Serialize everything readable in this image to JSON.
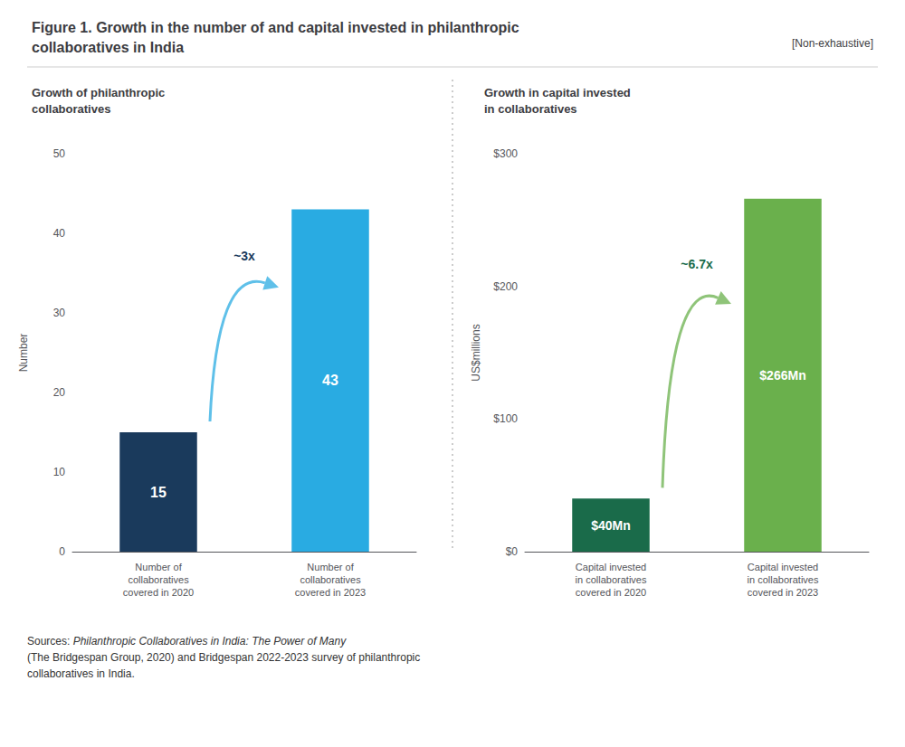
{
  "title": "Figure 1. Growth in the number of and capital invested in philanthropic\ncollaboratives in India",
  "annotations": [
    "[Non-exhaustive]"
  ],
  "source": [
    "Sources:",
    "Philanthropic Collaboratives in India: The Power of Many",
    "(The Bridgespan Group, 2020) and Bridgespan 2022-2023 survey of philanthropic\ncollaboratives in India."
  ],
  "chart_data": [
    {
      "type": "bar",
      "subtitle": "Growth of philanthropic\ncollaboratives",
      "categories": [
        "Number of\ncollaboratives\ncovered in 2020",
        "Number of\ncollaboratives\ncovered in 2023"
      ],
      "values": [
        15,
        43
      ],
      "colors": [
        "#1a3a5c",
        "#29abe2"
      ],
      "ylabel": "Number",
      "ylim": [
        0,
        50
      ],
      "yticks": [
        0,
        10,
        20,
        30,
        40,
        50
      ],
      "grid": false,
      "data_labels": true,
      "annotations": [
        "~3x"
      ]
    },
    {
      "type": "bar",
      "subtitle": "Growth in capital invested\nin collaboratives",
      "categories": [
        "Capital invested\nin collaboratives\ncovered in 2020",
        "Capital invested\nin collaboratives\ncovered in 2023"
      ],
      "values": [
        40,
        266
      ],
      "value_labels": [
        "$40Mn",
        "$266Mn"
      ],
      "colors": [
        "#1a6b4a",
        "#6ab04c"
      ],
      "ylabel": "US$millions",
      "ylim": [
        0,
        300
      ],
      "yticks": [
        {
          "value": 0,
          "label": "$0"
        },
        {
          "value": 100,
          "label": "$100"
        },
        {
          "value": 200,
          "label": "$200"
        },
        {
          "value": 300,
          "label": "$300"
        }
      ],
      "grid": false,
      "annotations": [
        "~6.7x"
      ]
    }
  ]
}
